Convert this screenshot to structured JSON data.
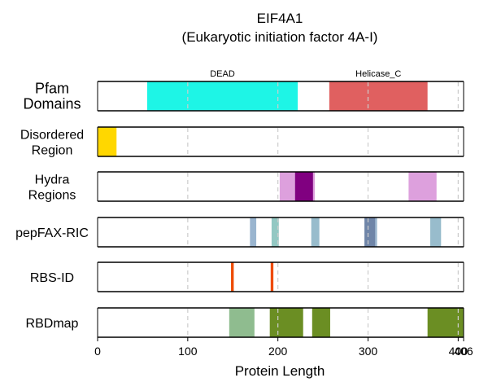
{
  "chart_data": {
    "type": "bar",
    "title": "EIF4A1",
    "subtitle": "(Eukaryotic initiation factor 4A-I)",
    "xlabel": "Protein Length",
    "xlim": [
      0,
      406
    ],
    "xticks": [
      0,
      100,
      200,
      300,
      400,
      406
    ],
    "xtick_labels": [
      "0",
      "100",
      "200",
      "300",
      "400",
      "406"
    ],
    "gridlines_x": [
      100,
      200,
      300,
      400
    ],
    "tracks": [
      {
        "name": "Pfam\nDomains",
        "big": true,
        "segments": [
          {
            "start": 55,
            "end": 222,
            "color": "#1ef5e6",
            "label": "DEAD"
          },
          {
            "start": 257,
            "end": 366,
            "color": "#e06060",
            "label": "Helicase_C"
          }
        ]
      },
      {
        "name": "Disordered\nRegion",
        "segments": [
          {
            "start": 0,
            "end": 21,
            "color": "#ffd700"
          }
        ]
      },
      {
        "name": "Hydra\nRegions",
        "segments": [
          {
            "start": 202,
            "end": 219,
            "color": "#dda0dd"
          },
          {
            "start": 219,
            "end": 239,
            "color": "#800080"
          },
          {
            "start": 239,
            "end": 241,
            "color": "#dda0dd"
          },
          {
            "start": 345,
            "end": 376,
            "color": "#dda0dd"
          }
        ]
      },
      {
        "name": "pepFAX-RIC",
        "segments": [
          {
            "start": 169,
            "end": 176,
            "color": "#9ab5cf"
          },
          {
            "start": 193,
            "end": 201,
            "color": "#93c8c3"
          },
          {
            "start": 237,
            "end": 246,
            "color": "#98bccc"
          },
          {
            "start": 296,
            "end": 308,
            "color": "#6f85a8"
          },
          {
            "start": 308,
            "end": 310,
            "color": "#9ab5cf"
          },
          {
            "start": 369,
            "end": 381,
            "color": "#98bccc"
          }
        ]
      },
      {
        "name": "RBS-ID",
        "segments": [
          {
            "start": 148,
            "end": 151,
            "color": "#ee4b00"
          },
          {
            "start": 192,
            "end": 195,
            "color": "#ee4b00"
          }
        ]
      },
      {
        "name": "RBDmap",
        "segments": [
          {
            "start": 146,
            "end": 174,
            "color": "#8fbc8f"
          },
          {
            "start": 191,
            "end": 228,
            "color": "#6b8e23"
          },
          {
            "start": 238,
            "end": 258,
            "color": "#6b8e23"
          },
          {
            "start": 366,
            "end": 406,
            "color": "#6b8e23"
          }
        ]
      }
    ],
    "colors": {
      "gridline": "#cccccc",
      "track_border": "#000000"
    }
  }
}
